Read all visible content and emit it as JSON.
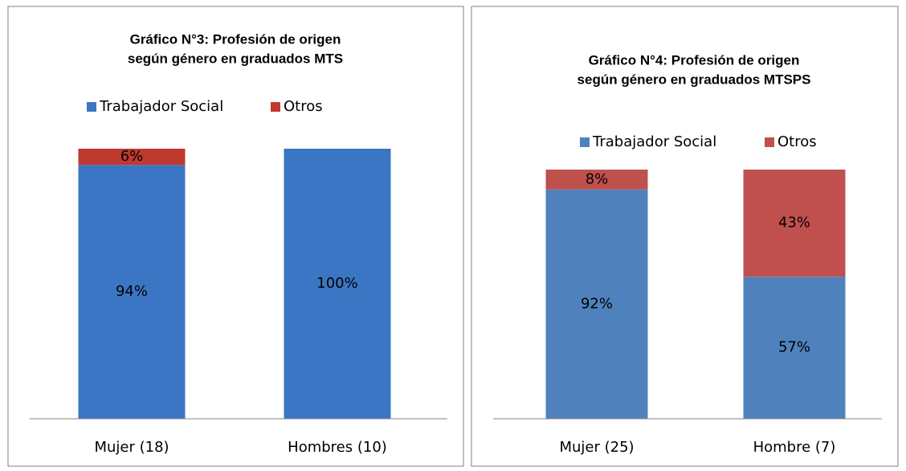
{
  "chart_data": [
    {
      "type": "stacked_bar",
      "title": "Gráfico N°3: Profesión de origen",
      "subtitle": "según género en graduados MTS",
      "categories": [
        "Mujer (18)",
        "Hombres (10)"
      ],
      "series": [
        {
          "name": "Trabajador Social",
          "color": "#3b76c4",
          "values": [
            94,
            100
          ],
          "value_labels": [
            "94%",
            "100%"
          ]
        },
        {
          "name": "Otros",
          "color": "#c0392f",
          "values": [
            6,
            null
          ],
          "value_labels": [
            "6%",
            null
          ]
        }
      ]
    },
    {
      "type": "stacked_bar",
      "title": "Gráfico N°4: Profesión de origen",
      "subtitle": "según género en graduados MTSPS",
      "categories": [
        "Mujer (25)",
        "Hombre (7)"
      ],
      "series": [
        {
          "name": "Trabajador Social",
          "color": "#4f81bd",
          "values": [
            92,
            57
          ],
          "value_labels": [
            "92%",
            "57%"
          ]
        },
        {
          "name": "Otros",
          "color": "#c0504d",
          "values": [
            8,
            43
          ],
          "value_labels": [
            "8%",
            "43%"
          ]
        }
      ]
    }
  ]
}
